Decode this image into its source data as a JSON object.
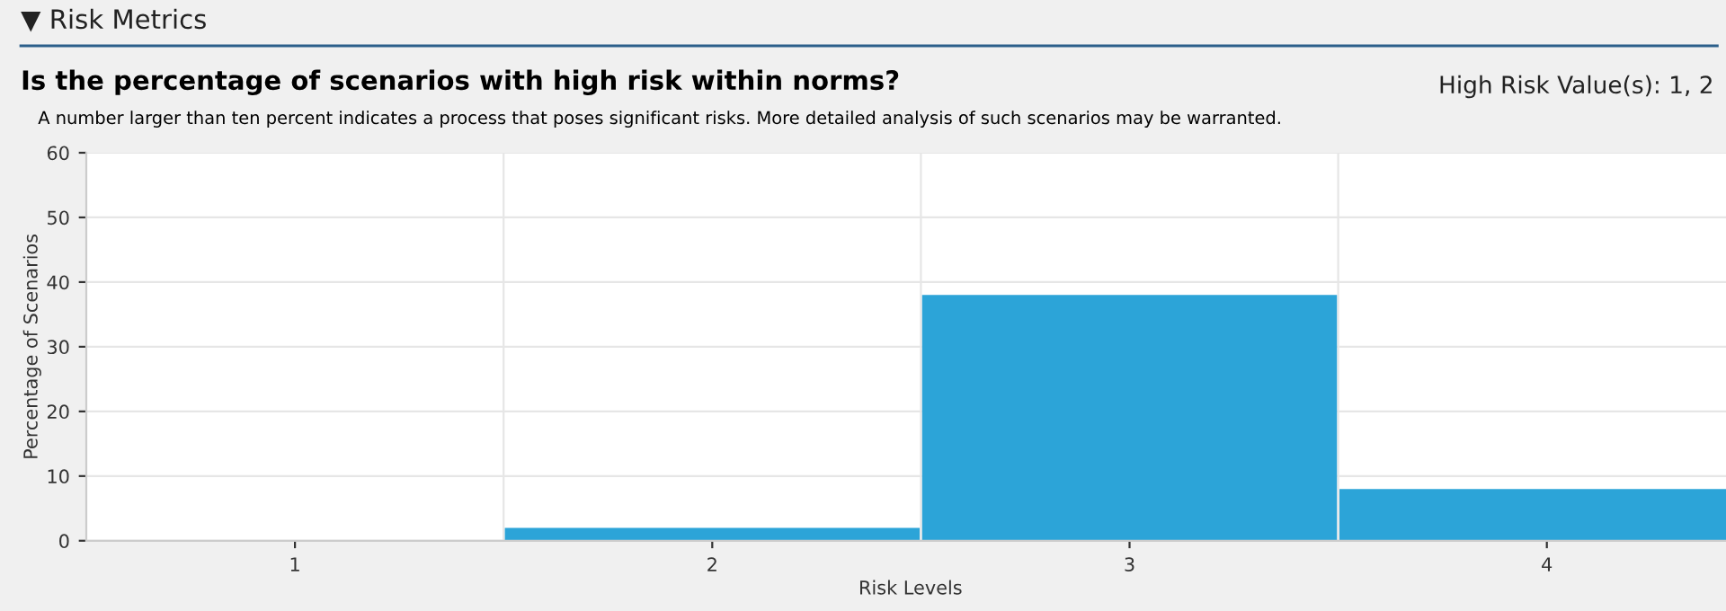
{
  "chart_data": {
    "type": "bar",
    "title": "Is the percentage of scenarios with high risk within norms?",
    "subtitle": "A number larger than ten percent indicates a process that poses significant risks. More detailed analysis of such scenarios may be warranted.",
    "annotations": [
      "▼ Risk Metrics",
      "High Risk Value(s): 1, 2"
    ],
    "xlabel": "Risk Levels",
    "ylabel": "Percentage of Scenarios",
    "categories": [
      "1",
      "2",
      "3",
      "4"
    ],
    "values": [
      0,
      2,
      38,
      8
    ],
    "color": "#2ca4d8",
    "ylim": [
      0,
      60
    ],
    "yticks": [
      0,
      10,
      20,
      30,
      40,
      50,
      60
    ],
    "grid": true
  }
}
